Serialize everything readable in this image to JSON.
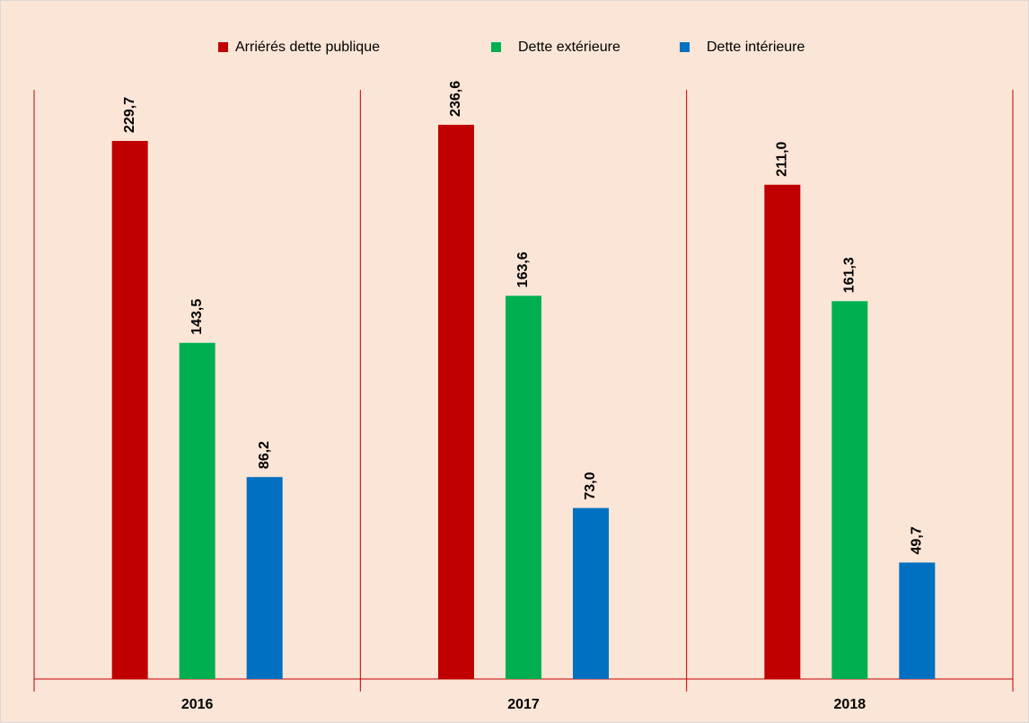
{
  "chart_data": {
    "type": "bar",
    "categories": [
      "2016",
      "2017",
      "2018"
    ],
    "series": [
      {
        "name": "Arriérés dette publique",
        "color": "#c00000",
        "values": [
          229.7,
          236.6,
          211.0
        ],
        "value_labels": [
          "229,7",
          "236,6",
          "211,0"
        ]
      },
      {
        "name": "Dette extérieure",
        "color": "#00b050",
        "values": [
          143.5,
          163.6,
          161.3
        ],
        "value_labels": [
          "143,5",
          "163,6",
          "161,3"
        ]
      },
      {
        "name": "Dette intérieure",
        "color": "#0070c0",
        "values": [
          86.2,
          73.0,
          49.7
        ],
        "value_labels": [
          "86,2",
          "73,0",
          "49,7"
        ]
      }
    ]
  }
}
